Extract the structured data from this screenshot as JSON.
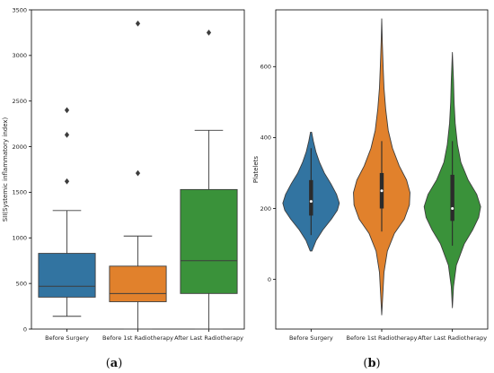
{
  "chart_data": [
    {
      "panel_label": "(a)",
      "type": "box",
      "ylabel": "SII(Systemic inflammatory index)",
      "ylim": [
        0,
        3500
      ],
      "yticks": [
        0,
        500,
        1000,
        1500,
        2000,
        2500,
        3000,
        3500
      ],
      "categories": [
        "Before Surgery",
        "Before 1st Radiotherapy",
        "After Last Radiotherapy"
      ],
      "colors": [
        "#3274a1",
        "#e1812c",
        "#3a923a"
      ],
      "boxes": [
        {
          "whisker_low": 140,
          "q1": 350,
          "median": 470,
          "q3": 830,
          "whisker_high": 1300,
          "outliers": [
            1620,
            2130,
            2400
          ]
        },
        {
          "whisker_low": 0,
          "q1": 300,
          "median": 390,
          "q3": 690,
          "whisker_high": 1020,
          "outliers": [
            1710,
            3350
          ]
        },
        {
          "whisker_low": 0,
          "q1": 390,
          "median": 750,
          "q3": 1530,
          "whisker_high": 2180,
          "outliers": [
            3250
          ]
        }
      ],
      "grid": false
    },
    {
      "panel_label": "(b)",
      "type": "violin",
      "ylabel": "Platelets",
      "ylim": [
        -140,
        760
      ],
      "yticks": [
        0,
        200,
        400,
        600
      ],
      "categories": [
        "Before Surgery",
        "Before 1st Radiotherapy",
        "After Last Radiotherapy"
      ],
      "colors": [
        "#3274a1",
        "#e1812c",
        "#3a923a"
      ],
      "violins": [
        {
          "min": 80,
          "max": 415,
          "q1": 180,
          "median": 220,
          "q3": 280,
          "whisker_low": 125,
          "whisker_high": 370,
          "density": [
            [
              80,
              0.03
            ],
            [
              110,
              0.18
            ],
            [
              140,
              0.42
            ],
            [
              170,
              0.72
            ],
            [
              195,
              0.93
            ],
            [
              215,
              1.0
            ],
            [
              240,
              0.9
            ],
            [
              270,
              0.7
            ],
            [
              300,
              0.47
            ],
            [
              330,
              0.3
            ],
            [
              360,
              0.17
            ],
            [
              390,
              0.08
            ],
            [
              415,
              0.02
            ]
          ]
        },
        {
          "min": -100,
          "max": 735,
          "q1": 200,
          "median": 250,
          "q3": 300,
          "whisker_low": 135,
          "whisker_high": 390,
          "density": [
            [
              -100,
              0.0
            ],
            [
              -40,
              0.04
            ],
            [
              20,
              0.08
            ],
            [
              80,
              0.2
            ],
            [
              130,
              0.45
            ],
            [
              170,
              0.8
            ],
            [
              210,
              0.98
            ],
            [
              245,
              1.0
            ],
            [
              280,
              0.88
            ],
            [
              320,
              0.62
            ],
            [
              370,
              0.38
            ],
            [
              420,
              0.23
            ],
            [
              480,
              0.14
            ],
            [
              540,
              0.08
            ],
            [
              600,
              0.05
            ],
            [
              670,
              0.02
            ],
            [
              735,
              0.0
            ]
          ]
        },
        {
          "min": -80,
          "max": 640,
          "q1": 165,
          "median": 200,
          "q3": 295,
          "whisker_low": 95,
          "whisker_high": 390,
          "density": [
            [
              -80,
              0.0
            ],
            [
              -20,
              0.04
            ],
            [
              40,
              0.14
            ],
            [
              100,
              0.42
            ],
            [
              140,
              0.72
            ],
            [
              175,
              0.93
            ],
            [
              205,
              1.0
            ],
            [
              240,
              0.86
            ],
            [
              280,
              0.56
            ],
            [
              330,
              0.3
            ],
            [
              380,
              0.18
            ],
            [
              440,
              0.1
            ],
            [
              500,
              0.06
            ],
            [
              560,
              0.04
            ],
            [
              640,
              0.0
            ]
          ]
        }
      ],
      "grid": false
    }
  ]
}
